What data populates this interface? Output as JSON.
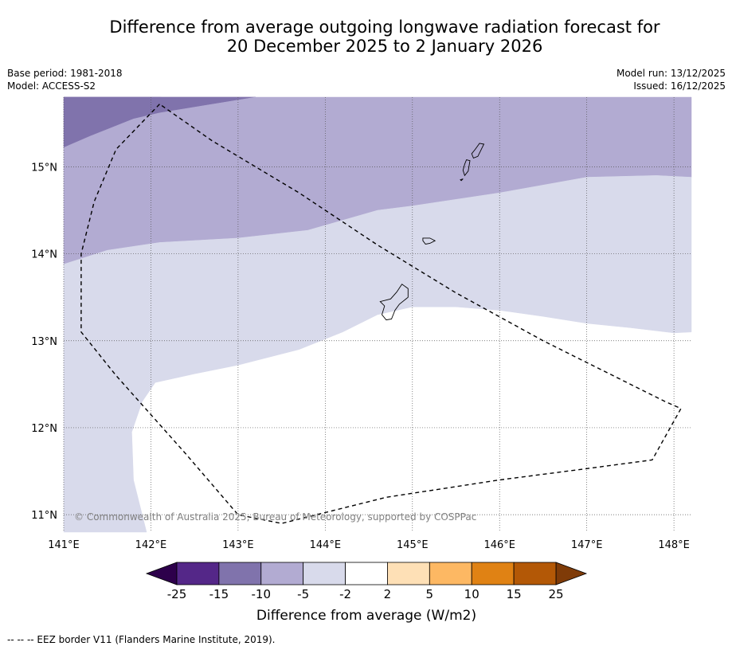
{
  "title": {
    "line1": "Difference from average outgoing longwave radiation forecast for",
    "line2": "20 December 2025 to 2 January 2026"
  },
  "info_left": {
    "base_period": "Base period: 1981-2018",
    "model": "Model: ACCESS-S2"
  },
  "info_right": {
    "model_run": "Model run: 13/12/2025",
    "issued": "Issued: 16/12/2025"
  },
  "map": {
    "extent": {
      "lon_min": 141.0,
      "lon_max": 148.2,
      "lat_min": 10.8,
      "lat_max": 15.8
    },
    "lon_ticks": [
      141,
      142,
      143,
      144,
      145,
      146,
      147,
      148
    ],
    "lon_labels": [
      "141°E",
      "142°E",
      "143°E",
      "144°E",
      "145°E",
      "146°E",
      "147°E",
      "148°E"
    ],
    "lat_ticks": [
      15,
      14,
      13,
      12,
      11
    ],
    "lat_labels": [
      "15°N",
      "14°N",
      "13°N",
      "12°N",
      "11°N"
    ],
    "copyright": "© Commonwealth of Australia 2025, Bureau of Meteorology, supported by COSPPac",
    "regions": [
      {
        "class": "-15 to -10",
        "color": "#8073ac",
        "points": [
          [
            141.0,
            15.8
          ],
          [
            142.1,
            15.8
          ],
          [
            142.8,
            15.74
          ],
          [
            143.2,
            15.8
          ],
          [
            141.0,
            15.8
          ],
          [
            141.0,
            15.22
          ],
          [
            141.3,
            15.35
          ],
          [
            141.8,
            15.55
          ],
          [
            142.1,
            15.62
          ],
          [
            143.2,
            15.8
          ]
        ]
      },
      {
        "class": "-10 to -5",
        "color": "#b2abd2",
        "points": [
          [
            141.0,
            15.22
          ],
          [
            141.3,
            15.35
          ],
          [
            141.8,
            15.55
          ],
          [
            142.1,
            15.62
          ],
          [
            143.2,
            15.8
          ],
          [
            148.2,
            15.8
          ],
          [
            148.2,
            14.88
          ],
          [
            147.8,
            14.9
          ],
          [
            147.0,
            14.88
          ],
          [
            146.0,
            14.7
          ],
          [
            145.0,
            14.55
          ],
          [
            144.6,
            14.5
          ],
          [
            143.8,
            14.27
          ],
          [
            143.0,
            14.18
          ],
          [
            142.1,
            14.13
          ],
          [
            141.5,
            14.04
          ],
          [
            141.0,
            13.88
          ]
        ]
      },
      {
        "class": "-5 to -2",
        "color": "#d8daeb",
        "points": [
          [
            141.0,
            13.88
          ],
          [
            141.5,
            14.04
          ],
          [
            142.1,
            14.13
          ],
          [
            143.0,
            14.18
          ],
          [
            143.8,
            14.27
          ],
          [
            144.6,
            14.5
          ],
          [
            145.0,
            14.55
          ],
          [
            146.0,
            14.7
          ],
          [
            147.0,
            14.88
          ],
          [
            147.8,
            14.9
          ],
          [
            148.2,
            14.88
          ],
          [
            148.2,
            13.1
          ],
          [
            148.0,
            13.09
          ],
          [
            147.5,
            13.15
          ],
          [
            147.0,
            13.2
          ],
          [
            146.5,
            13.28
          ],
          [
            146.0,
            13.35
          ],
          [
            145.5,
            13.39
          ],
          [
            145.0,
            13.39
          ],
          [
            144.6,
            13.3
          ],
          [
            144.2,
            13.1
          ],
          [
            143.7,
            12.9
          ],
          [
            143.0,
            12.72
          ],
          [
            142.5,
            12.62
          ],
          [
            142.05,
            12.52
          ],
          [
            141.9,
            12.3
          ],
          [
            141.78,
            11.95
          ],
          [
            141.8,
            11.4
          ],
          [
            141.95,
            10.8
          ],
          [
            141.0,
            10.8
          ]
        ]
      }
    ],
    "islands": [
      {
        "name": "island-saipan-tinian",
        "points": [
          [
            145.77,
            15.27
          ],
          [
            145.82,
            15.26
          ],
          [
            145.75,
            15.12
          ],
          [
            145.7,
            15.1
          ],
          [
            145.68,
            15.15
          ],
          [
            145.72,
            15.2
          ],
          [
            145.77,
            15.27
          ]
        ]
      },
      {
        "name": "island-tinian",
        "points": [
          [
            145.62,
            15.08
          ],
          [
            145.66,
            15.07
          ],
          [
            145.64,
            14.95
          ],
          [
            145.6,
            14.9
          ],
          [
            145.58,
            14.96
          ],
          [
            145.6,
            15.03
          ],
          [
            145.62,
            15.08
          ]
        ]
      },
      {
        "name": "island-aguijan",
        "points": [
          [
            145.55,
            14.85
          ],
          [
            145.58,
            14.86
          ],
          [
            145.56,
            14.84
          ]
        ]
      },
      {
        "name": "island-rota",
        "points": [
          [
            145.12,
            14.18
          ],
          [
            145.2,
            14.18
          ],
          [
            145.26,
            14.15
          ],
          [
            145.2,
            14.12
          ],
          [
            145.15,
            14.11
          ],
          [
            145.12,
            14.15
          ],
          [
            145.12,
            14.18
          ]
        ]
      },
      {
        "name": "island-guam",
        "points": [
          [
            144.88,
            13.65
          ],
          [
            144.95,
            13.6
          ],
          [
            144.95,
            13.5
          ],
          [
            144.85,
            13.42
          ],
          [
            144.8,
            13.35
          ],
          [
            144.76,
            13.25
          ],
          [
            144.7,
            13.24
          ],
          [
            144.65,
            13.3
          ],
          [
            144.68,
            13.4
          ],
          [
            144.63,
            13.45
          ],
          [
            144.75,
            13.48
          ],
          [
            144.82,
            13.56
          ],
          [
            144.88,
            13.65
          ]
        ]
      }
    ],
    "eez_border": [
      [
        142.1,
        15.72
      ],
      [
        141.6,
        15.2
      ],
      [
        141.35,
        14.6
      ],
      [
        141.2,
        14.0
      ],
      [
        141.2,
        13.1
      ],
      [
        141.6,
        12.6
      ],
      [
        142.4,
        11.7
      ],
      [
        143.0,
        11.0
      ],
      [
        143.5,
        10.9
      ],
      [
        144.7,
        11.2
      ],
      [
        146.0,
        11.4
      ],
      [
        147.0,
        11.53
      ],
      [
        147.75,
        11.63
      ],
      [
        148.08,
        12.22
      ],
      [
        147.9,
        12.3
      ],
      [
        146.5,
        13.0
      ],
      [
        145.5,
        13.55
      ],
      [
        144.6,
        14.1
      ],
      [
        143.7,
        14.7
      ],
      [
        142.7,
        15.3
      ],
      [
        142.1,
        15.72
      ]
    ]
  },
  "colorbar": {
    "labels": [
      "-25",
      "-15",
      "-10",
      "-5",
      "-2",
      "2",
      "5",
      "10",
      "15",
      "25"
    ],
    "colors": [
      "#542788",
      "#8073ac",
      "#b2abd2",
      "#d8daeb",
      "#ffffff",
      "#fee0b6",
      "#fdb863",
      "#e08214",
      "#b35806"
    ],
    "under_color": "#2d004b",
    "over_color": "#7f3b08",
    "label": "Difference from average (W/m2)"
  },
  "footnote": "--  --  -- EEZ border V11 (Flanders Marine Institute, 2019)."
}
